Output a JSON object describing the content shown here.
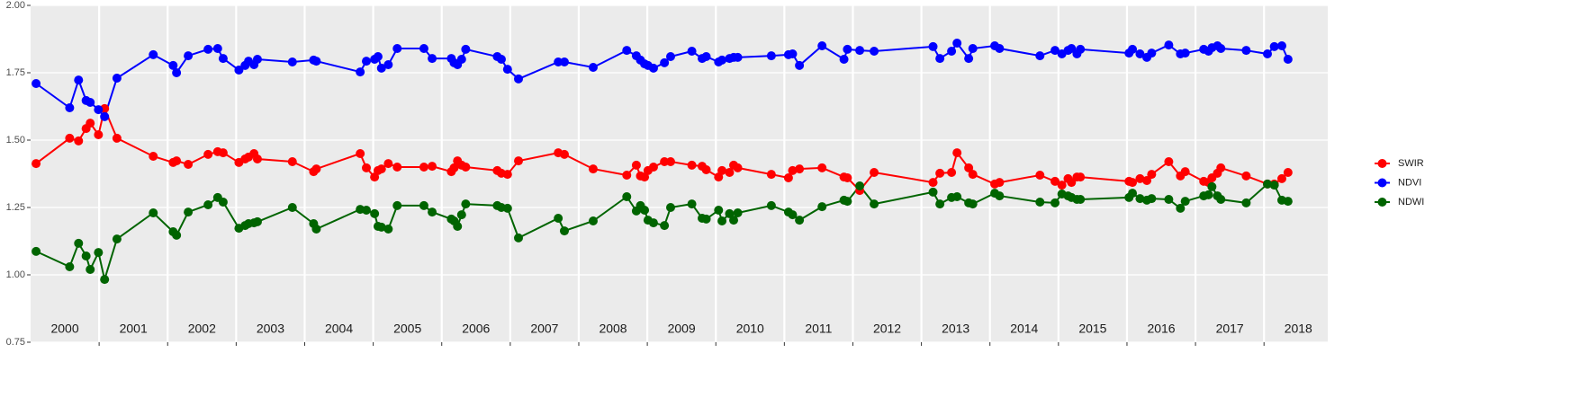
{
  "chart_data": {
    "type": "line",
    "x": [
      2000.08,
      2000.57,
      2000.7,
      2000.81,
      2000.87,
      2000.99,
      2001.08,
      2001.26,
      2001.79,
      2002.08,
      2002.13,
      2002.3,
      2002.59,
      2002.73,
      2002.81,
      2003.04,
      2003.13,
      2003.18,
      2003.26,
      2003.31,
      2003.82,
      2004.13,
      2004.17,
      2004.81,
      2004.9,
      2005.02,
      2005.07,
      2005.12,
      2005.22,
      2005.35,
      2005.74,
      2005.86,
      2006.14,
      2006.18,
      2006.23,
      2006.29,
      2006.35,
      2006.81,
      2006.87,
      2006.96,
      2007.12,
      2007.7,
      2007.79,
      2008.21,
      2008.7,
      2008.84,
      2008.9,
      2008.96,
      2009.01,
      2009.09,
      2009.25,
      2009.34,
      2009.65,
      2009.8,
      2009.86,
      2010.04,
      2010.09,
      2010.2,
      2010.26,
      2010.32,
      2010.81,
      2011.06,
      2011.12,
      2011.22,
      2011.55,
      2011.87,
      2011.92,
      2012.1,
      2012.31,
      2013.17,
      2013.27,
      2013.44,
      2013.52,
      2013.69,
      2013.75,
      2014.07,
      2014.14,
      2014.73,
      2014.95,
      2015.05,
      2015.14,
      2015.19,
      2015.27,
      2015.32,
      2016.03,
      2016.08,
      2016.19,
      2016.29,
      2016.36,
      2016.61,
      2016.78,
      2016.85,
      2017.12,
      2017.19,
      2017.24,
      2017.32,
      2017.37,
      2017.74,
      2018.05,
      2018.15,
      2018.26,
      2018.35
    ],
    "series": [
      {
        "name": "SWIR",
        "color": "#ff0000",
        "values": [
          1.413,
          1.507,
          1.497,
          1.543,
          1.563,
          1.52,
          1.617,
          1.507,
          1.44,
          1.417,
          1.423,
          1.41,
          1.447,
          1.457,
          1.453,
          1.417,
          1.43,
          1.437,
          1.45,
          1.43,
          1.42,
          1.383,
          1.393,
          1.45,
          1.397,
          1.363,
          1.387,
          1.393,
          1.413,
          1.4,
          1.4,
          1.403,
          1.383,
          1.397,
          1.423,
          1.407,
          1.4,
          1.387,
          1.377,
          1.373,
          1.423,
          1.453,
          1.447,
          1.393,
          1.37,
          1.407,
          1.367,
          1.363,
          1.387,
          1.4,
          1.42,
          1.42,
          1.407,
          1.403,
          1.39,
          1.363,
          1.387,
          1.38,
          1.407,
          1.397,
          1.373,
          1.36,
          1.387,
          1.393,
          1.397,
          1.363,
          1.36,
          1.313,
          1.38,
          1.343,
          1.377,
          1.38,
          1.453,
          1.397,
          1.373,
          1.337,
          1.343,
          1.37,
          1.347,
          1.333,
          1.357,
          1.343,
          1.363,
          1.363,
          1.347,
          1.343,
          1.357,
          1.35,
          1.373,
          1.42,
          1.367,
          1.383,
          1.347,
          1.343,
          1.36,
          1.377,
          1.397,
          1.367,
          1.337,
          1.337,
          1.357,
          1.38
        ]
      },
      {
        "name": "NDVI",
        "color": "#0000ff",
        "values": [
          1.71,
          1.62,
          1.723,
          1.647,
          1.64,
          1.613,
          1.587,
          1.73,
          1.817,
          1.777,
          1.75,
          1.813,
          1.837,
          1.84,
          1.803,
          1.76,
          1.777,
          1.793,
          1.78,
          1.8,
          1.79,
          1.797,
          1.793,
          1.753,
          1.793,
          1.8,
          1.81,
          1.767,
          1.78,
          1.84,
          1.84,
          1.803,
          1.803,
          1.787,
          1.78,
          1.8,
          1.837,
          1.81,
          1.8,
          1.763,
          1.727,
          1.79,
          1.79,
          1.77,
          1.833,
          1.813,
          1.797,
          1.783,
          1.777,
          1.767,
          1.787,
          1.81,
          1.83,
          1.803,
          1.81,
          1.79,
          1.797,
          1.803,
          1.807,
          1.807,
          1.813,
          1.817,
          1.82,
          1.777,
          1.85,
          1.8,
          1.837,
          1.833,
          1.83,
          1.847,
          1.803,
          1.83,
          1.86,
          1.803,
          1.84,
          1.85,
          1.84,
          1.813,
          1.833,
          1.82,
          1.833,
          1.84,
          1.82,
          1.837,
          1.823,
          1.837,
          1.82,
          1.807,
          1.823,
          1.853,
          1.82,
          1.823,
          1.837,
          1.83,
          1.843,
          1.85,
          1.84,
          1.833,
          1.82,
          1.847,
          1.85,
          1.8
        ]
      },
      {
        "name": "NDWI",
        "color": "#006400",
        "values": [
          1.087,
          1.03,
          1.117,
          1.07,
          1.02,
          1.083,
          0.983,
          1.133,
          1.23,
          1.16,
          1.147,
          1.233,
          1.26,
          1.287,
          1.27,
          1.173,
          1.183,
          1.19,
          1.193,
          1.197,
          1.25,
          1.19,
          1.17,
          1.243,
          1.24,
          1.227,
          1.18,
          1.177,
          1.17,
          1.257,
          1.257,
          1.233,
          1.207,
          1.2,
          1.18,
          1.223,
          1.263,
          1.257,
          1.25,
          1.247,
          1.137,
          1.21,
          1.163,
          1.2,
          1.29,
          1.237,
          1.257,
          1.24,
          1.203,
          1.193,
          1.183,
          1.25,
          1.263,
          1.21,
          1.207,
          1.24,
          1.2,
          1.227,
          1.203,
          1.23,
          1.257,
          1.233,
          1.223,
          1.203,
          1.253,
          1.277,
          1.273,
          1.33,
          1.263,
          1.307,
          1.263,
          1.287,
          1.29,
          1.267,
          1.263,
          1.303,
          1.293,
          1.27,
          1.267,
          1.3,
          1.293,
          1.287,
          1.28,
          1.28,
          1.287,
          1.303,
          1.283,
          1.277,
          1.283,
          1.28,
          1.247,
          1.273,
          1.293,
          1.297,
          1.327,
          1.293,
          1.28,
          1.267,
          1.337,
          1.333,
          1.277,
          1.273
        ]
      }
    ],
    "xlim": [
      2000,
      2018.93
    ],
    "xticks": [
      2001,
      2002,
      2003,
      2004,
      2005,
      2006,
      2007,
      2008,
      2009,
      2010,
      2011,
      2012,
      2013,
      2014,
      2015,
      2016,
      2017,
      2018
    ],
    "xlabels": [
      {
        "value": 2000.5,
        "label": "2000"
      },
      {
        "value": 2001.5,
        "label": "2001"
      },
      {
        "value": 2002.5,
        "label": "2002"
      },
      {
        "value": 2003.5,
        "label": "2003"
      },
      {
        "value": 2004.5,
        "label": "2004"
      },
      {
        "value": 2005.5,
        "label": "2005"
      },
      {
        "value": 2006.5,
        "label": "2006"
      },
      {
        "value": 2007.5,
        "label": "2007"
      },
      {
        "value": 2008.5,
        "label": "2008"
      },
      {
        "value": 2009.5,
        "label": "2009"
      },
      {
        "value": 2010.5,
        "label": "2010"
      },
      {
        "value": 2011.5,
        "label": "2011"
      },
      {
        "value": 2012.5,
        "label": "2012"
      },
      {
        "value": 2013.5,
        "label": "2013"
      },
      {
        "value": 2014.5,
        "label": "2014"
      },
      {
        "value": 2015.5,
        "label": "2015"
      },
      {
        "value": 2016.5,
        "label": "2016"
      },
      {
        "value": 2017.5,
        "label": "2017"
      },
      {
        "value": 2018.5,
        "label": "2018"
      }
    ],
    "ylim": [
      0.75,
      2.0
    ],
    "yticks": [
      {
        "value": 0.75,
        "label": "0.75"
      },
      {
        "value": 1.0,
        "label": "1.00"
      },
      {
        "value": 1.25,
        "label": "1.25"
      },
      {
        "value": 1.5,
        "label": "1.50"
      },
      {
        "value": 1.75,
        "label": "1.75"
      },
      {
        "value": 2.0,
        "label": "2.00"
      }
    ],
    "grid": true,
    "legend": "right"
  }
}
